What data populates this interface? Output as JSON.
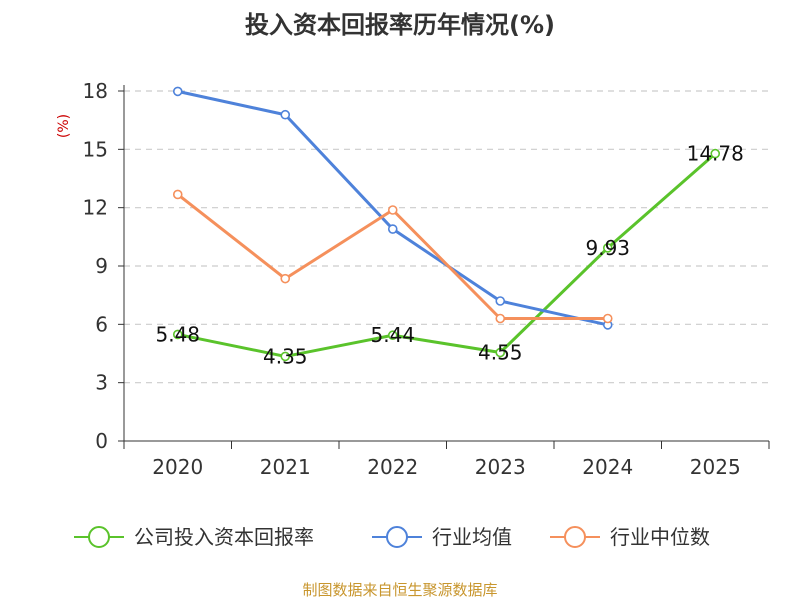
{
  "chart_data": {
    "type": "line",
    "title": "投入资本回报率历年情况(%)",
    "ylabel": "(%)",
    "xlabel": "",
    "categories": [
      "2020",
      "2021",
      "2022",
      "2023",
      "2024",
      "2025"
    ],
    "ylim": [
      0,
      18
    ],
    "yticks": [
      0,
      3,
      6,
      9,
      12,
      15,
      18
    ],
    "grid": true,
    "legend_position": "bottom",
    "series": [
      {
        "name": "公司投入资本回报率",
        "color": "#5ac32b",
        "values": [
          5.48,
          4.35,
          5.44,
          4.55,
          9.93,
          14.78
        ],
        "labels": [
          "5.48",
          "4.35",
          "5.44",
          "4.55",
          "9.93",
          "14.78"
        ]
      },
      {
        "name": "行业均值",
        "color": "#4e82da",
        "values": [
          17.98,
          16.78,
          10.9,
          7.2,
          5.97,
          null
        ]
      },
      {
        "name": "行业中位数",
        "color": "#f5905c",
        "values": [
          12.68,
          8.35,
          11.88,
          6.3,
          6.3,
          null
        ]
      }
    ]
  },
  "footer": {
    "source": "制图数据来自恒生聚源数据库"
  }
}
